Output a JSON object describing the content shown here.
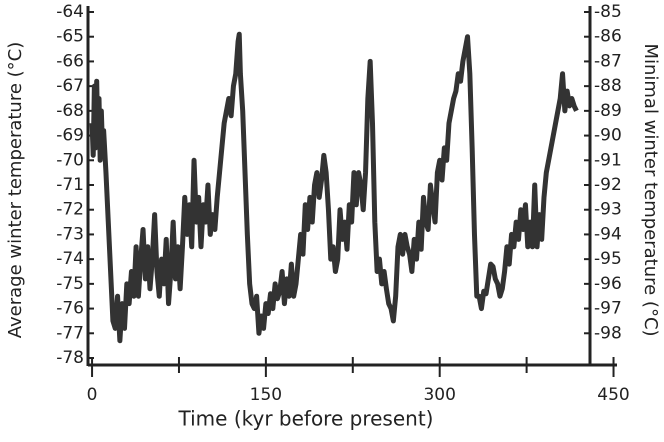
{
  "chart_data": {
    "type": "line",
    "x_label": "Time (kyr before present)",
    "y_label": "Average winter temperature (°C)",
    "y2_label": "Minimal winter temperature (°C)",
    "xlim": [
      -3.5,
      453
    ],
    "xticks": [
      0,
      150,
      300,
      450
    ],
    "xminorticks": [
      75,
      225,
      375
    ],
    "ylim": [
      -78,
      -64
    ],
    "yticks": [
      -64,
      -65,
      -66,
      -67,
      -68,
      -69,
      -70,
      -71,
      -72,
      -73,
      -74,
      -75,
      -76,
      -77,
      -78
    ],
    "y2lim": [
      -99,
      -85
    ],
    "y2ticks": [
      -85,
      -86,
      -87,
      -88,
      -89,
      -90,
      -91,
      -92,
      -93,
      -94,
      -95,
      -96,
      -97,
      -98
    ],
    "grid": false,
    "series": [
      {
        "color": "#333333",
        "x": [
          0,
          1,
          2,
          3,
          4,
          5,
          6,
          7,
          8,
          9,
          10,
          12,
          14,
          16,
          18,
          20,
          22,
          24,
          26,
          28,
          30,
          32,
          34,
          36,
          38,
          40,
          42,
          44,
          46,
          48,
          50,
          52,
          54,
          56,
          58,
          60,
          62,
          64,
          66,
          68,
          70,
          72,
          74,
          76,
          78,
          80,
          82,
          84,
          86,
          88,
          90,
          92,
          94,
          96,
          98,
          100,
          102,
          104,
          106,
          108,
          110,
          112,
          114,
          116,
          118,
          120,
          122,
          124,
          126,
          127,
          128,
          130,
          132,
          134,
          136,
          138,
          140,
          142,
          144,
          146,
          148,
          150,
          152,
          154,
          156,
          158,
          160,
          162,
          164,
          166,
          168,
          170,
          172,
          174,
          176,
          178,
          180,
          182,
          184,
          186,
          188,
          190,
          192,
          194,
          196,
          198,
          200,
          202,
          204,
          206,
          208,
          210,
          212,
          214,
          216,
          218,
          220,
          222,
          224,
          226,
          228,
          230,
          232,
          234,
          236,
          238,
          240,
          242,
          244,
          246,
          248,
          250,
          252,
          254,
          256,
          258,
          260,
          262,
          264,
          266,
          268,
          270,
          272,
          274,
          276,
          278,
          280,
          282,
          284,
          286,
          288,
          290,
          292,
          294,
          296,
          298,
          300,
          302,
          304,
          306,
          308,
          310,
          312,
          314,
          316,
          318,
          320,
          322,
          324,
          326,
          328,
          330,
          332,
          334,
          336,
          338,
          340,
          342,
          344,
          346,
          348,
          350,
          352,
          354,
          356,
          358,
          360,
          362,
          364,
          366,
          368,
          370,
          372,
          374,
          376,
          378,
          380,
          382,
          384,
          386,
          388,
          390,
          392,
          394,
          396,
          398,
          400,
          402,
          404,
          406,
          408,
          410,
          412,
          414,
          416,
          418
        ],
        "values": [
          -68.5,
          -69.8,
          -67,
          -69.5,
          -66.8,
          -69.2,
          -67.5,
          -70,
          -68,
          -69.5,
          -68.8,
          -70.5,
          -72.5,
          -74.5,
          -76.5,
          -76.8,
          -75.5,
          -77.3,
          -75.8,
          -76.8,
          -75,
          -75.8,
          -74.5,
          -75.5,
          -73.5,
          -75.5,
          -74,
          -72.8,
          -74.8,
          -73.5,
          -75.2,
          -74,
          -72.2,
          -74.5,
          -75.5,
          -74,
          -75,
          -73.2,
          -75.8,
          -74.5,
          -72.5,
          -74.8,
          -73.5,
          -75.2,
          -73.5,
          -71.5,
          -73,
          -71.8,
          -73.5,
          -70,
          -72.5,
          -71.5,
          -73.5,
          -71.8,
          -72.5,
          -71,
          -73,
          -72.2,
          -72.8,
          -71.5,
          -70.5,
          -69.5,
          -68.5,
          -68,
          -67.5,
          -68.2,
          -67,
          -66.5,
          -65.2,
          -64.9,
          -66.5,
          -68,
          -70.5,
          -73,
          -75,
          -75.8,
          -76,
          -75.5,
          -77,
          -76.3,
          -76.8,
          -75.8,
          -76.2,
          -75.4,
          -76,
          -75,
          -75.6,
          -75.3,
          -74.5,
          -75.8,
          -74.8,
          -75.5,
          -74.2,
          -75.5,
          -75,
          -74,
          -73,
          -73.8,
          -71.8,
          -72.8,
          -71.5,
          -72.5,
          -71,
          -70.5,
          -71.5,
          -70.8,
          -69.8,
          -70.5,
          -72,
          -74,
          -73.5,
          -74.5,
          -74,
          -72,
          -73.2,
          -72.5,
          -73.6,
          -71.8,
          -72.5,
          -70.5,
          -71.8,
          -70.5,
          -71,
          -72,
          -70.5,
          -67.5,
          -66,
          -68.5,
          -72.5,
          -74.5,
          -74,
          -75,
          -74.5,
          -75.2,
          -75.8,
          -76,
          -76.5,
          -75.5,
          -73.5,
          -73,
          -73.8,
          -73,
          -73.5,
          -73.8,
          -74.5,
          -73.2,
          -74,
          -72.5,
          -73.6,
          -71.5,
          -72.5,
          -72.8,
          -71,
          -71.8,
          -72.5,
          -70.5,
          -70,
          -70.8,
          -69.5,
          -70,
          -68.5,
          -68,
          -67.5,
          -67.2,
          -66.5,
          -66.8,
          -66,
          -65.5,
          -65,
          -66.5,
          -69.5,
          -73,
          -75.5,
          -75.5,
          -76,
          -75.3,
          -75.4,
          -74.8,
          -74.2,
          -74.3,
          -74.8,
          -75,
          -75.5,
          -75.2,
          -74.5,
          -73.5,
          -74.2,
          -73,
          -73.5,
          -72.5,
          -73.2,
          -72,
          -72.8,
          -71.8,
          -73.5,
          -72.5,
          -73.5,
          -71,
          -73.5,
          -72.2,
          -73.2,
          -71.5,
          -70.5,
          -70,
          -69.5,
          -69,
          -68.5,
          -68,
          -67.5,
          -66.5,
          -68,
          -67.2,
          -67.8,
          -67.5,
          -67.8,
          -68
        ]
      }
    ]
  }
}
